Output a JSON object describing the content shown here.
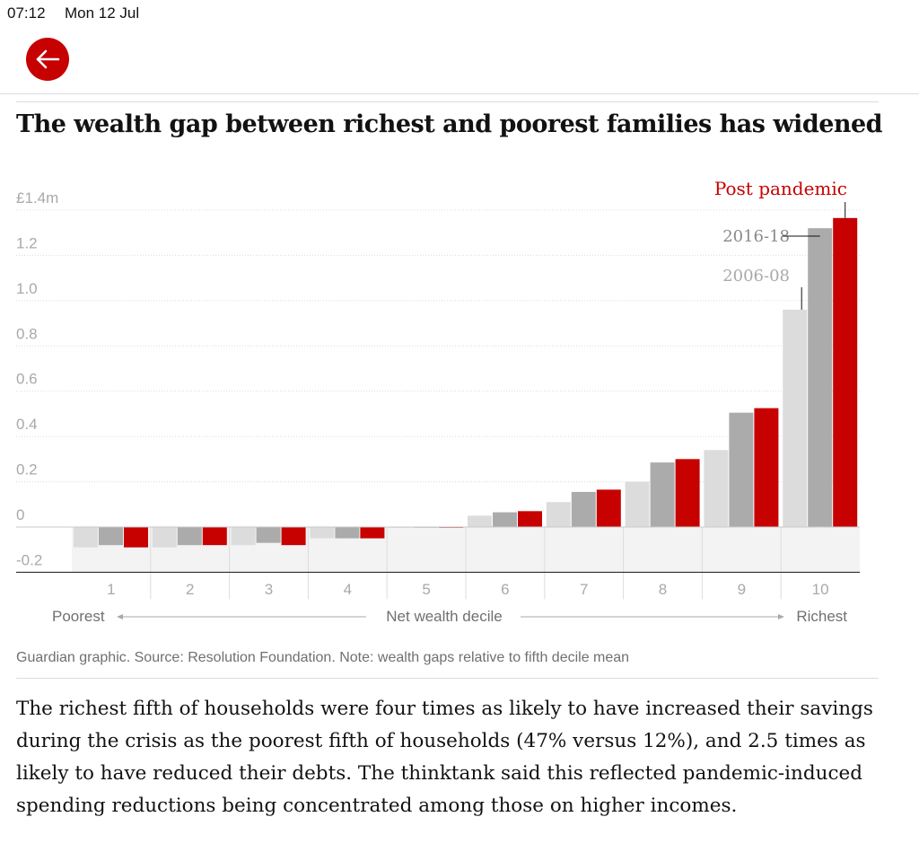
{
  "status_bar": {
    "time": "07:12",
    "date": "Mon 12 Jul"
  },
  "nav": {
    "back_icon": "arrow-left-icon",
    "accent": "#c70000"
  },
  "chart_data": {
    "type": "bar",
    "title": "The wealth gap between richest and poorest families has widened",
    "categories": [
      "1",
      "2",
      "3",
      "4",
      "5",
      "6",
      "7",
      "8",
      "9",
      "10"
    ],
    "series": [
      {
        "name": "2006-08",
        "color": "#dcdcdc",
        "values": [
          -0.09,
          -0.09,
          -0.08,
          -0.05,
          0,
          0.05,
          0.11,
          0.2,
          0.34,
          0.96
        ]
      },
      {
        "name": "2016-18",
        "color": "#ababab",
        "values": [
          -0.08,
          -0.08,
          -0.07,
          -0.05,
          0,
          0.065,
          0.155,
          0.285,
          0.505,
          1.32
        ]
      },
      {
        "name": "Post pandemic",
        "color": "#c70000",
        "values": [
          -0.09,
          -0.08,
          -0.08,
          -0.05,
          0,
          0.07,
          0.165,
          0.3,
          0.525,
          1.365
        ]
      }
    ],
    "yticks": [
      "£1.4m",
      "1.2",
      "1.0",
      "0.8",
      "0.6",
      "0.4",
      "0.2",
      "0",
      "-0.2"
    ],
    "ytick_values": [
      1.4,
      1.2,
      1.0,
      0.8,
      0.6,
      0.4,
      0.2,
      0,
      -0.2
    ],
    "ylim": [
      -0.2,
      1.4
    ],
    "xlabel": "Net wealth decile",
    "x_left_label": "Poorest",
    "x_right_label": "Richest",
    "grid": true,
    "legend": "inline labels above decile 10"
  },
  "source": "Guardian graphic. Source: Resolution Foundation. Note: wealth gaps relative to fifth decile mean",
  "body_text": "The richest fifth of households were four times as likely to have increased their savings during the crisis as the poorest fifth of households (47% versus 12%), and 2.5 times as likely to have reduced their debts. The thinktank said this reflected pandemic-induced spending reductions being concentrated among those on higher incomes."
}
